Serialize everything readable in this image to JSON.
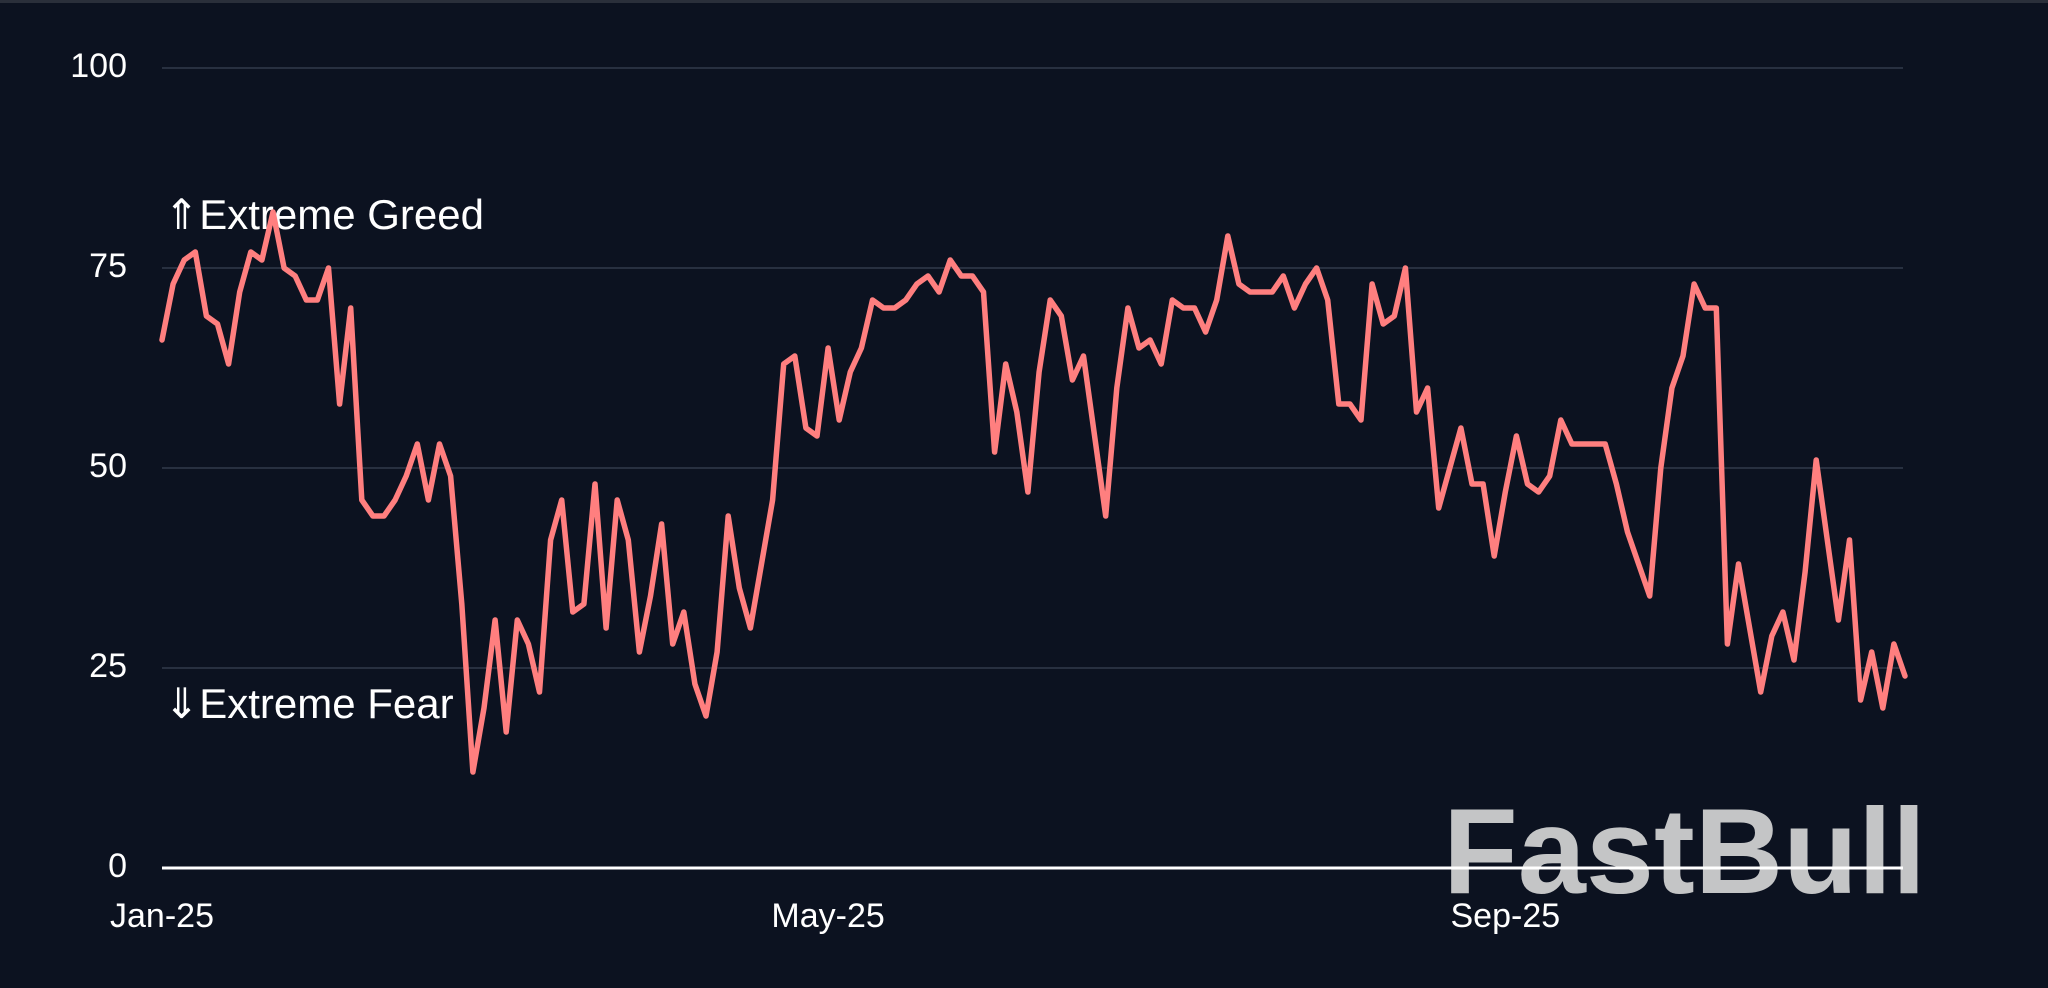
{
  "chart_data": {
    "type": "line",
    "categories": [
      "Jan-25",
      null,
      null,
      null,
      null,
      null,
      null,
      null,
      null,
      null,
      null,
      null,
      null,
      null,
      null,
      null,
      null,
      null,
      null,
      null,
      null,
      null,
      null,
      null,
      null,
      null,
      null,
      null,
      null,
      null,
      null,
      null,
      null,
      null,
      null,
      null,
      null,
      null,
      null,
      null,
      null,
      null,
      null,
      null,
      null,
      null,
      null,
      null,
      null,
      null,
      null,
      null,
      null,
      null,
      null,
      null,
      null,
      null,
      null,
      null,
      "May-25",
      null,
      null,
      null,
      null,
      null,
      null,
      null,
      null,
      null,
      null,
      null,
      null,
      null,
      null,
      null,
      null,
      null,
      null,
      null,
      null,
      null,
      null,
      null,
      null,
      null,
      null,
      null,
      null,
      null,
      null,
      null,
      null,
      null,
      null,
      null,
      null,
      null,
      null,
      null,
      null,
      null,
      null,
      null,
      null,
      null,
      null,
      null,
      null,
      null,
      null,
      null,
      null,
      null,
      null,
      null,
      null,
      null,
      null,
      null,
      null,
      "Sep-25",
      null,
      null,
      null,
      null,
      null,
      null,
      null,
      null,
      null,
      null,
      null,
      null,
      null,
      null,
      null,
      null,
      null,
      null,
      null,
      null,
      null,
      null,
      null,
      null,
      null,
      null,
      null,
      null,
      null,
      null,
      null,
      null,
      null,
      null,
      null,
      null
    ],
    "series": [
      {
        "color": "#ff7f7f",
        "values": [
          66,
          73,
          76,
          77,
          69,
          68,
          63,
          72,
          77,
          76,
          82,
          75,
          74,
          71,
          71,
          75,
          58,
          70,
          46,
          44,
          44,
          46,
          49,
          53,
          46,
          53,
          49,
          33,
          12,
          20,
          31,
          17,
          31,
          28,
          22,
          41,
          46,
          32,
          33,
          48,
          30,
          46,
          41,
          27,
          34,
          43,
          28,
          32,
          23,
          19,
          27,
          44,
          35,
          30,
          38,
          46,
          63,
          64,
          55,
          54,
          65,
          56,
          62,
          65,
          71,
          70,
          70,
          71,
          73,
          74,
          72,
          76,
          74,
          74,
          72,
          52,
          63,
          57,
          47,
          62,
          71,
          69,
          61,
          64,
          54,
          44,
          60,
          70,
          65,
          66,
          63,
          71,
          70,
          70,
          67,
          71,
          79,
          73,
          72,
          72,
          72,
          74,
          70,
          73,
          75,
          71,
          58,
          58,
          56,
          73,
          68,
          69,
          75,
          57,
          60,
          45,
          50,
          55,
          48,
          48,
          39,
          47,
          54,
          48,
          47,
          49,
          56,
          53,
          53,
          53,
          53,
          48,
          42,
          38,
          34,
          50,
          60,
          64,
          73,
          70,
          70,
          28,
          38,
          30,
          22,
          29,
          32,
          26,
          37,
          51,
          41,
          31,
          41,
          21,
          27,
          20,
          28,
          24
        ]
      }
    ],
    "ylim": [
      0,
      100
    ],
    "yticks": [
      0,
      25,
      50,
      75,
      100
    ],
    "grid": true,
    "annotations": [
      "⇑Extreme Greed",
      "⇓Extreme Fear"
    ],
    "watermark": "FastBull"
  }
}
